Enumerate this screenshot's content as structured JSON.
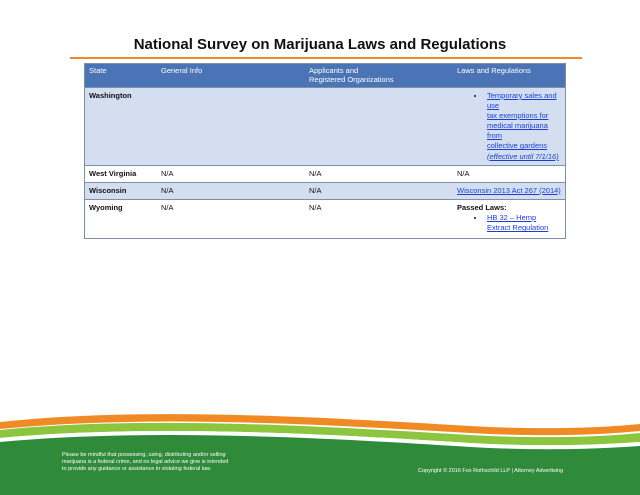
{
  "title": "National Survey on Marijuana Laws and Regulations",
  "table": {
    "headers": {
      "state": "State",
      "general_info": "General Info",
      "applicants_line1": "Applicants and",
      "applicants_line2": "Registered Organizations",
      "laws": "Laws and Regulations"
    },
    "rows": {
      "washington": {
        "state": "Washington",
        "general_info": "",
        "applicants": "",
        "law_link_line1": "Temporary sales and use",
        "law_link_line2": "tax exemptions for",
        "law_link_line3": "medical marijuana from",
        "law_link_line4": "collective gardens",
        "law_effective": "(effective until 7/1/16)"
      },
      "west_virginia": {
        "state": "West Virginia",
        "general_info": "N/A",
        "applicants": "N/A",
        "laws": "N/A"
      },
      "wisconsin": {
        "state": "Wisconsin",
        "general_info": "N/A",
        "applicants": "N/A",
        "law_link": "Wisconsin 2013 Act 267 (2014)"
      },
      "wyoming": {
        "state": "Wyoming",
        "general_info": "N/A",
        "applicants": "N/A",
        "passed_label": "Passed Laws:",
        "law_link_line1": "HB 32 – Hemp",
        "law_link_line2": "Extract Regulation"
      }
    }
  },
  "footer": {
    "disclaimer_line1": "Please be mindful that possessing, using, distributing and/or selling",
    "disclaimer_line2": "marijuana is a federal crime, and no legal advice we give is intended",
    "disclaimer_line3": "to provide any guidance or assistance in violating federal law.",
    "copyright": "Copyright © 2016 Fox Rothschild LLP | Attorney Advertising"
  },
  "colors": {
    "accent_orange": "#f08a24",
    "header_blue": "#4a74b5",
    "row_shade": "#d3dff0",
    "footer_green": "#2f8a3a",
    "link_blue": "#1a3fd6"
  }
}
